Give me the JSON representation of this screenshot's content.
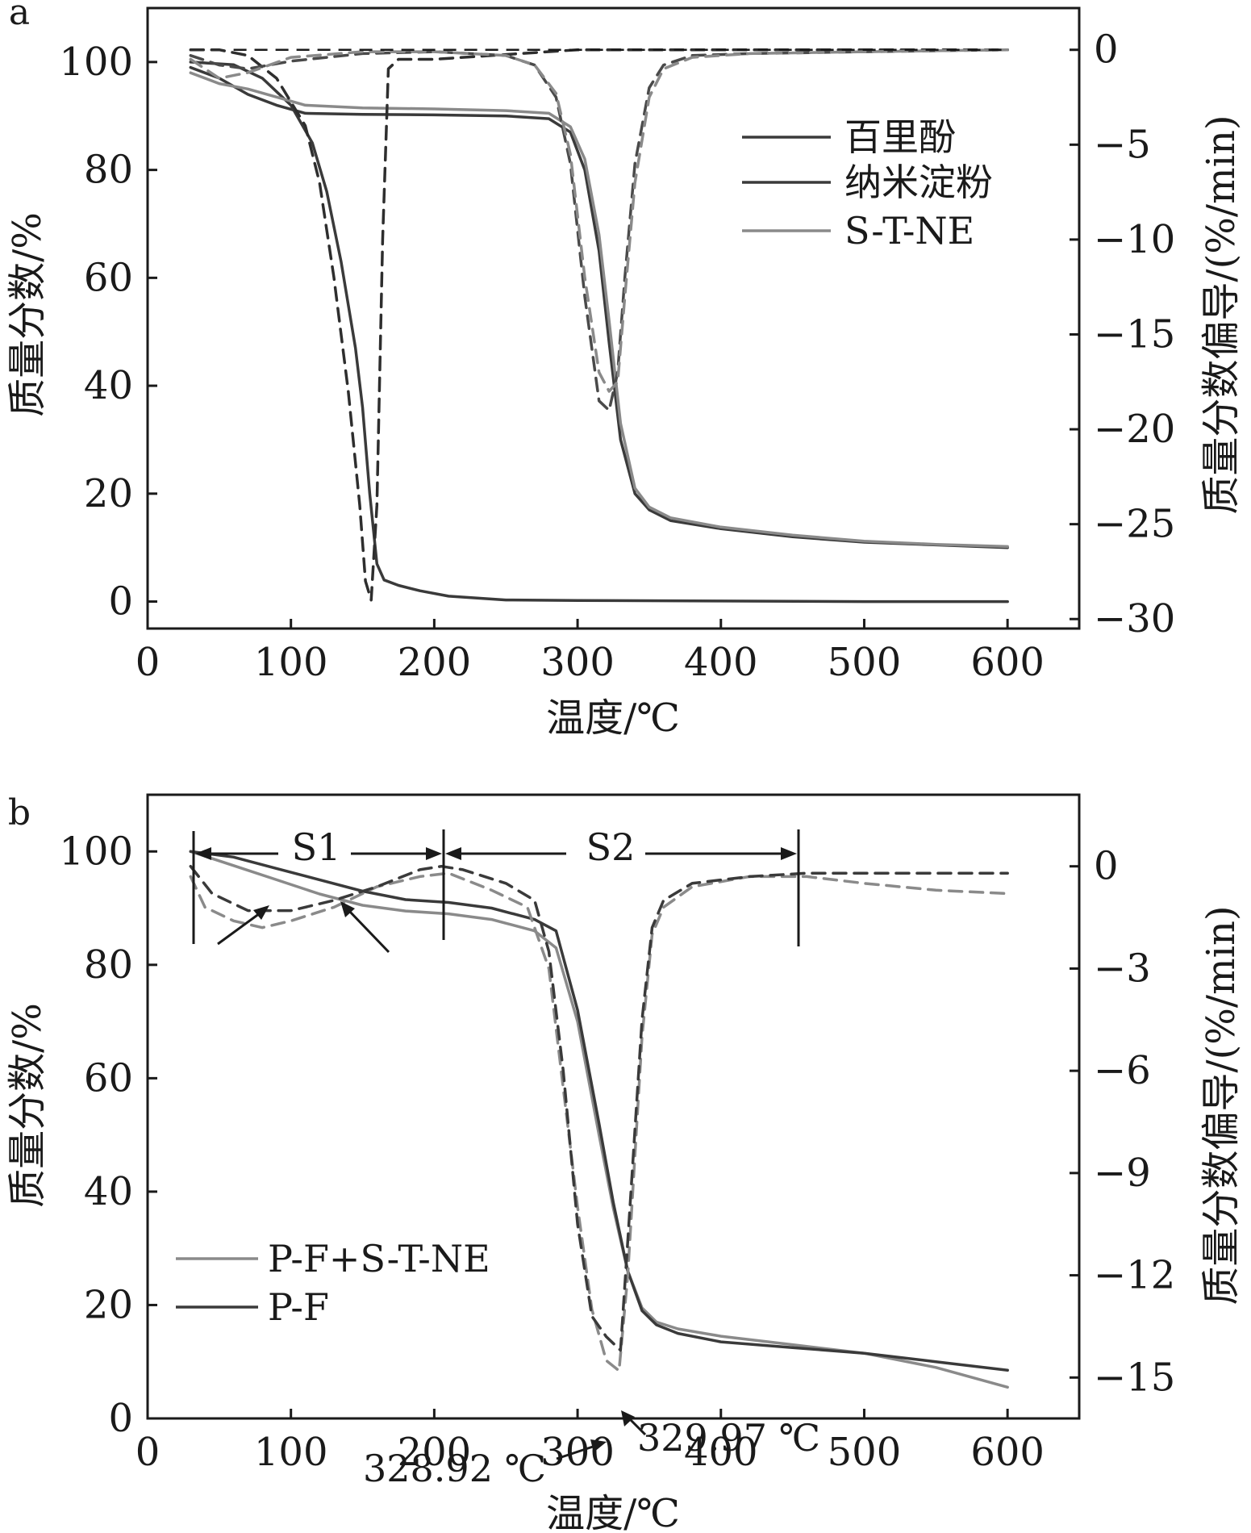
{
  "chart_data": [
    {
      "panel_label": "a",
      "type": "line",
      "xlabel": "温度/℃",
      "ylabel": "质量分数/%",
      "y2label": "质量分数偏导/(%/min)",
      "xlim": [
        0,
        650
      ],
      "ylim": [
        -5,
        110
      ],
      "y2lim": [
        -30.5,
        2.2
      ],
      "xticks": [
        0,
        100,
        200,
        300,
        400,
        500,
        600
      ],
      "yticks": [
        0,
        20,
        40,
        60,
        80,
        100
      ],
      "y2ticks": [
        0,
        -5,
        -10,
        -15,
        -20,
        -25,
        -30
      ],
      "y2tick_labels": [
        "0",
        "−5",
        "−10",
        "−15",
        "−20",
        "−25",
        "−30"
      ],
      "grid": false,
      "legend_position": "top-right",
      "legend": [
        "百里酚",
        "纳米淀粉",
        "S-T-NE"
      ],
      "series": [
        {
          "name": "百里酚",
          "kind": "mass",
          "axis": "left",
          "style": "solid",
          "color": "#3a3a3a",
          "x": [
            30,
            60,
            80,
            100,
            115,
            125,
            135,
            145,
            150,
            155,
            160,
            165,
            175,
            190,
            210,
            250,
            300,
            400,
            500,
            600
          ],
          "y": [
            100,
            99.5,
            97,
            92,
            85,
            76,
            63,
            47,
            36,
            20,
            7,
            4,
            3,
            2,
            1,
            0.3,
            0.2,
            0.1,
            0,
            0
          ]
        },
        {
          "name": "纳米淀粉",
          "kind": "mass",
          "axis": "left",
          "style": "solid",
          "color": "#3a3a3a",
          "x": [
            30,
            50,
            70,
            90,
            110,
            150,
            200,
            250,
            280,
            295,
            305,
            315,
            322,
            330,
            340,
            350,
            365,
            400,
            450,
            500,
            550,
            600
          ],
          "y": [
            99,
            97,
            94,
            92,
            90.5,
            90.3,
            90.2,
            90,
            89.5,
            87,
            80,
            65,
            48,
            30,
            20,
            17,
            15,
            13.5,
            12,
            11,
            10.5,
            10
          ]
        },
        {
          "name": "S-T-NE",
          "kind": "mass",
          "axis": "left",
          "style": "solid",
          "color": "#8a8a8a",
          "x": [
            30,
            50,
            70,
            90,
            110,
            150,
            200,
            250,
            280,
            295,
            305,
            315,
            322,
            330,
            340,
            350,
            365,
            400,
            450,
            500,
            550,
            600
          ],
          "y": [
            98,
            96,
            95,
            93.5,
            92,
            91.5,
            91.3,
            91,
            90.5,
            88,
            82,
            68,
            52,
            33,
            21,
            17.5,
            15.5,
            13.8,
            12.3,
            11.2,
            10.6,
            10.2
          ]
        },
        {
          "name": "百里酚",
          "kind": "dtg",
          "axis": "right",
          "style": "dashed",
          "color": "#2e2e2e",
          "x": [
            30,
            50,
            70,
            90,
            110,
            120,
            130,
            140,
            148,
            152,
            156,
            160,
            164,
            168,
            175,
            200,
            300,
            400,
            500,
            600
          ],
          "y": [
            0,
            0,
            -0.3,
            -1.5,
            -4,
            -7,
            -12,
            -18,
            -24,
            -28,
            -29,
            -24,
            -10,
            -1,
            -0.5,
            -0.5,
            0,
            0,
            0,
            0
          ]
        },
        {
          "name": "纳米淀粉",
          "kind": "dtg",
          "axis": "right",
          "style": "dashed",
          "color": "#4a4a4a",
          "x": [
            30,
            50,
            70,
            100,
            150,
            200,
            250,
            270,
            285,
            295,
            305,
            315,
            322,
            328,
            333,
            340,
            350,
            360,
            380,
            420,
            500,
            600
          ],
          "y": [
            -0.3,
            -0.8,
            -1,
            -0.6,
            -0.2,
            -0.1,
            -0.3,
            -0.8,
            -2.5,
            -6,
            -13,
            -18.5,
            -19,
            -17,
            -12,
            -6,
            -2,
            -0.8,
            -0.3,
            -0.2,
            -0.1,
            0
          ]
        },
        {
          "name": "S-T-NE",
          "kind": "dtg",
          "axis": "right",
          "style": "dashed",
          "color": "#8a8a8a",
          "x": [
            30,
            50,
            70,
            100,
            150,
            200,
            250,
            270,
            285,
            295,
            305,
            315,
            322,
            328,
            333,
            340,
            350,
            360,
            380,
            420,
            500,
            600
          ],
          "y": [
            -0.5,
            -1.5,
            -1.2,
            -0.4,
            -0.1,
            -0.1,
            -0.3,
            -0.8,
            -2.3,
            -5.5,
            -12,
            -17,
            -18,
            -17.5,
            -13,
            -7,
            -2.5,
            -1,
            -0.4,
            -0.2,
            -0.1,
            0
          ]
        }
      ]
    },
    {
      "panel_label": "b",
      "type": "line",
      "xlabel": "温度/℃",
      "ylabel": "质量分数/%",
      "y2label": "质量分数偏导/(%/min)",
      "xlim": [
        0,
        650
      ],
      "ylim": [
        0,
        110
      ],
      "y2lim": [
        -16.2,
        2.1
      ],
      "xticks": [
        0,
        100,
        200,
        300,
        400,
        500,
        600
      ],
      "yticks": [
        0,
        20,
        40,
        60,
        80,
        100
      ],
      "y2ticks": [
        0,
        -3,
        -6,
        -9,
        -12,
        -15
      ],
      "y2tick_labels": [
        "0",
        "−3",
        "−6",
        "−9",
        "−12",
        "−15"
      ],
      "grid": false,
      "legend_position": "bottom-left",
      "legend": [
        "P-F+S-T-NE",
        "P-F"
      ],
      "stages": [
        {
          "label": "S1",
          "x_start": 32,
          "x_end": 206
        },
        {
          "label": "S2",
          "x_start": 206,
          "x_end": 454
        }
      ],
      "annotations": [
        "328.92 ℃",
        "329.97 ℃"
      ],
      "series": [
        {
          "name": "P-F+S-T-NE",
          "kind": "mass",
          "axis": "left",
          "style": "solid",
          "color": "#8a8a8a",
          "x": [
            30,
            60,
            90,
            120,
            150,
            180,
            210,
            240,
            270,
            285,
            300,
            315,
            325,
            335,
            345,
            355,
            370,
            400,
            450,
            500,
            550,
            600
          ],
          "y": [
            100,
            97.5,
            95,
            92.5,
            90.5,
            89.5,
            89,
            88,
            86,
            83,
            70,
            50,
            37,
            26,
            19.5,
            17,
            15.8,
            14.5,
            13,
            11.5,
            9,
            5.5
          ]
        },
        {
          "name": "P-F",
          "kind": "mass",
          "axis": "left",
          "style": "solid",
          "color": "#3a3a3a",
          "x": [
            30,
            60,
            90,
            120,
            150,
            180,
            210,
            240,
            270,
            285,
            300,
            315,
            325,
            335,
            345,
            355,
            370,
            400,
            450,
            500,
            550,
            600
          ],
          "y": [
            100,
            99,
            97,
            95,
            93,
            91.5,
            91,
            90,
            88,
            86,
            72,
            52,
            38,
            26,
            19,
            16.5,
            15,
            13.5,
            12.5,
            11.5,
            10,
            8.5
          ]
        },
        {
          "name": "P-F+S-T-NE",
          "kind": "dtg",
          "axis": "right",
          "style": "dashed",
          "color": "#8a8a8a",
          "x": [
            30,
            40,
            60,
            80,
            100,
            130,
            160,
            190,
            210,
            240,
            265,
            280,
            290,
            300,
            310,
            320,
            328.92,
            335,
            345,
            352,
            360,
            380,
            420,
            460,
            500,
            550,
            600
          ],
          "y": [
            -0.3,
            -1.2,
            -1.6,
            -1.8,
            -1.6,
            -1.2,
            -0.6,
            -0.3,
            -0.2,
            -0.7,
            -1.2,
            -3,
            -6.5,
            -10,
            -13,
            -14.5,
            -14.8,
            -12,
            -5,
            -2,
            -1.2,
            -0.6,
            -0.3,
            -0.3,
            -0.5,
            -0.7,
            -0.8
          ]
        },
        {
          "name": "P-F",
          "kind": "dtg",
          "axis": "right",
          "style": "dashed",
          "color": "#3a3a3a",
          "x": [
            30,
            45,
            70,
            100,
            130,
            160,
            190,
            205,
            220,
            250,
            270,
            280,
            290,
            300,
            310,
            320,
            329.97,
            335,
            345,
            352,
            360,
            380,
            420,
            460,
            500,
            550,
            600
          ],
          "y": [
            0,
            -0.8,
            -1.3,
            -1.3,
            -1.0,
            -0.6,
            -0.1,
            0,
            -0.1,
            -0.5,
            -1.0,
            -2.5,
            -6,
            -10.5,
            -13.2,
            -13.8,
            -14.2,
            -11,
            -4.5,
            -1.8,
            -1.0,
            -0.5,
            -0.3,
            -0.2,
            -0.2,
            -0.2,
            -0.2
          ]
        }
      ]
    }
  ]
}
